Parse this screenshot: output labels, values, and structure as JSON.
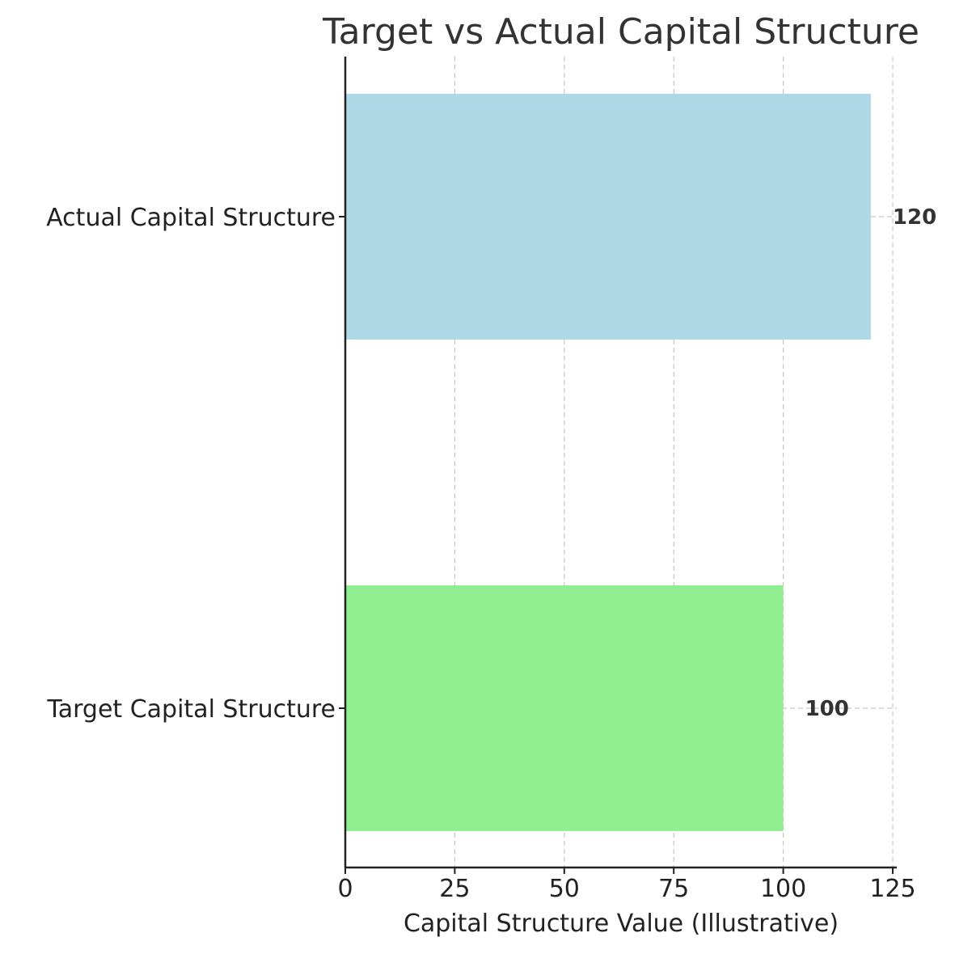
{
  "chart_data": {
    "type": "bar",
    "orientation": "horizontal",
    "title": "Target vs Actual Capital Structure",
    "xlabel": "Capital Structure Value (Illustrative)",
    "ylabel": "",
    "categories": [
      "Target Capital Structure",
      "Actual Capital Structure"
    ],
    "values": [
      100,
      120
    ],
    "value_labels": [
      "100",
      "120"
    ],
    "colors": [
      "#90ee90",
      "#add8e6"
    ],
    "xlim": [
      0,
      126
    ],
    "xticks": [
      0,
      25,
      50,
      75,
      100,
      125
    ],
    "xtick_labels": [
      "0",
      "25",
      "50",
      "75",
      "100",
      "125"
    ],
    "grid": true,
    "legend": "none"
  }
}
